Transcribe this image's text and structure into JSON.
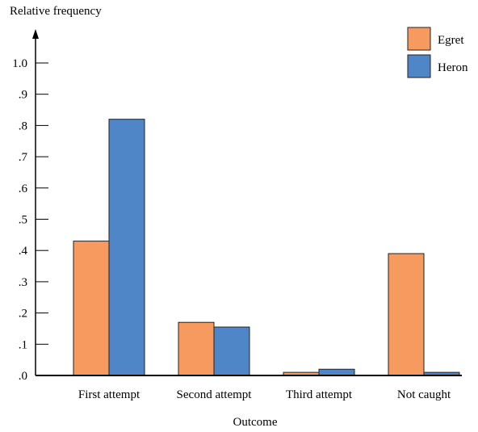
{
  "chart_data": {
    "type": "bar",
    "title": "",
    "ylabel": "Relative frequency",
    "xlabel": "Outcome",
    "ylim": [
      0,
      1.0
    ],
    "yticks": [
      {
        "value": 0.0,
        "label": ".0"
      },
      {
        "value": 0.1,
        "label": ".1"
      },
      {
        "value": 0.2,
        "label": ".2"
      },
      {
        "value": 0.3,
        "label": ".3"
      },
      {
        "value": 0.4,
        "label": ".4"
      },
      {
        "value": 0.5,
        "label": ".5"
      },
      {
        "value": 0.6,
        "label": ".6"
      },
      {
        "value": 0.7,
        "label": ".7"
      },
      {
        "value": 0.8,
        "label": ".8"
      },
      {
        "value": 0.9,
        "label": ".9"
      },
      {
        "value": 1.0,
        "label": "1.0"
      }
    ],
    "categories": [
      "First attempt",
      "Second attempt",
      "Third attempt",
      "Not caught"
    ],
    "series": [
      {
        "name": "Egret",
        "color": "#f79a5f",
        "values": [
          0.43,
          0.17,
          0.01,
          0.39
        ]
      },
      {
        "name": "Heron",
        "color": "#4e86c8",
        "values": [
          0.82,
          0.155,
          0.02,
          0.01
        ]
      }
    ],
    "grid": false,
    "legend": "top-right"
  }
}
